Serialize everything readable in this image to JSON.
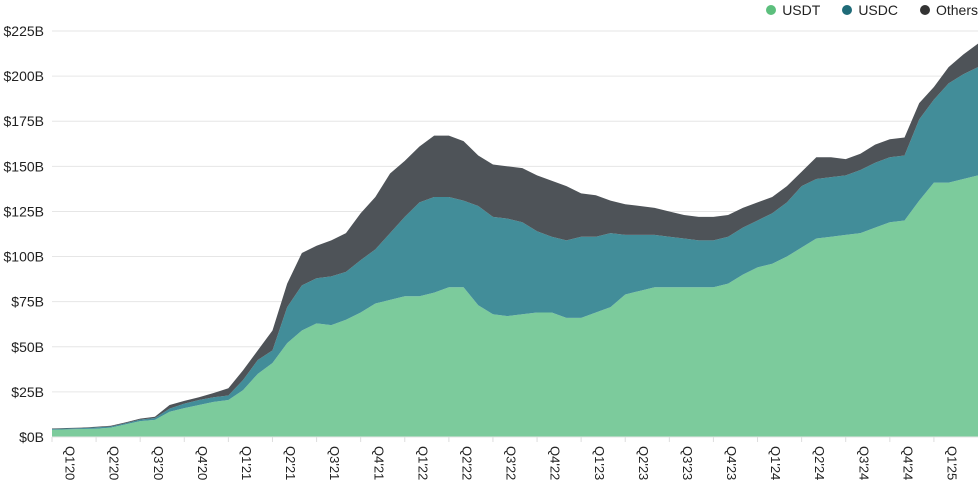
{
  "chart_data": {
    "type": "area",
    "stacked": true,
    "title": "",
    "xlabel": "",
    "ylabel": "",
    "ylim": [
      0,
      225
    ],
    "y_ticks": [
      "$0B",
      "$25B",
      "$50B",
      "$75B",
      "$100B",
      "$125B",
      "$150B",
      "$175B",
      "$200B",
      "$225B"
    ],
    "y_tick_values": [
      0,
      25,
      50,
      75,
      100,
      125,
      150,
      175,
      200,
      225
    ],
    "x_tick_labels": [
      "Q1'20",
      "Q2'20",
      "Q3'20",
      "Q4'20",
      "Q1'21",
      "Q2'21",
      "Q3'21",
      "Q4'21",
      "Q1'22",
      "Q2'22",
      "Q3'22",
      "Q4'22",
      "Q1'23",
      "Q2'23",
      "Q3'23",
      "Q4'23",
      "Q1'24",
      "Q2'24",
      "Q3'24",
      "Q4'24",
      "Q1'25"
    ],
    "grid": true,
    "legend_position": "top-right",
    "x_start": "2020-01",
    "x_end": "2025-04",
    "x_interval": "monthly",
    "series": [
      {
        "name": "USDT",
        "color": "#7ccb9c",
        "legend_color": "#5cbf7d",
        "values": [
          4,
          4.2,
          4.4,
          4.6,
          5.2,
          7,
          8.8,
          9.5,
          14,
          16,
          17.7,
          19.5,
          20.5,
          26,
          35,
          41,
          52,
          59,
          63,
          62,
          65,
          69,
          74,
          76,
          78,
          78,
          80,
          83,
          83,
          73,
          68,
          67,
          68,
          69,
          69,
          66,
          66,
          69,
          72,
          79,
          81,
          83,
          83,
          83,
          83,
          83,
          85,
          90,
          94,
          96,
          100,
          105,
          110,
          111,
          112,
          113,
          116,
          119,
          120,
          131,
          141,
          141,
          143,
          145
        ]
      },
      {
        "name": "USDC",
        "color": "#428d99",
        "legend_color": "#1f6b78",
        "values": [
          0.5,
          0.5,
          0.5,
          0.7,
          0.6,
          0.6,
          0.8,
          1,
          1.7,
          2.5,
          2.8,
          2.5,
          2.5,
          5.6,
          7.7,
          7,
          20,
          25,
          25,
          27,
          26.5,
          29,
          30,
          37,
          44,
          52,
          53,
          50,
          48,
          55,
          54,
          54,
          51,
          45,
          42,
          43,
          45,
          42,
          41,
          33,
          31,
          29,
          28,
          27,
          26,
          26,
          26,
          26,
          26,
          28,
          30,
          34,
          33,
          33,
          33,
          35,
          36,
          36,
          36,
          45,
          46,
          55,
          58,
          60
        ]
      },
      {
        "name": "Others",
        "color": "#4e5358",
        "legend_color": "#333333",
        "values": [
          0.3,
          0.3,
          0.3,
          0.4,
          0.4,
          0.5,
          0.6,
          0.7,
          2,
          1.5,
          1.5,
          2.4,
          4,
          5.4,
          5.3,
          11,
          13,
          18,
          18,
          20,
          21.5,
          26,
          29,
          33,
          31,
          31,
          34,
          34,
          33,
          28,
          29,
          29,
          30,
          31,
          31,
          30,
          24,
          23,
          18,
          17,
          16,
          15,
          14,
          13,
          13,
          13,
          12,
          11,
          10,
          9,
          9,
          8,
          12,
          11,
          9,
          9,
          10,
          10,
          10,
          9,
          7,
          9,
          11,
          13
        ]
      }
    ]
  }
}
